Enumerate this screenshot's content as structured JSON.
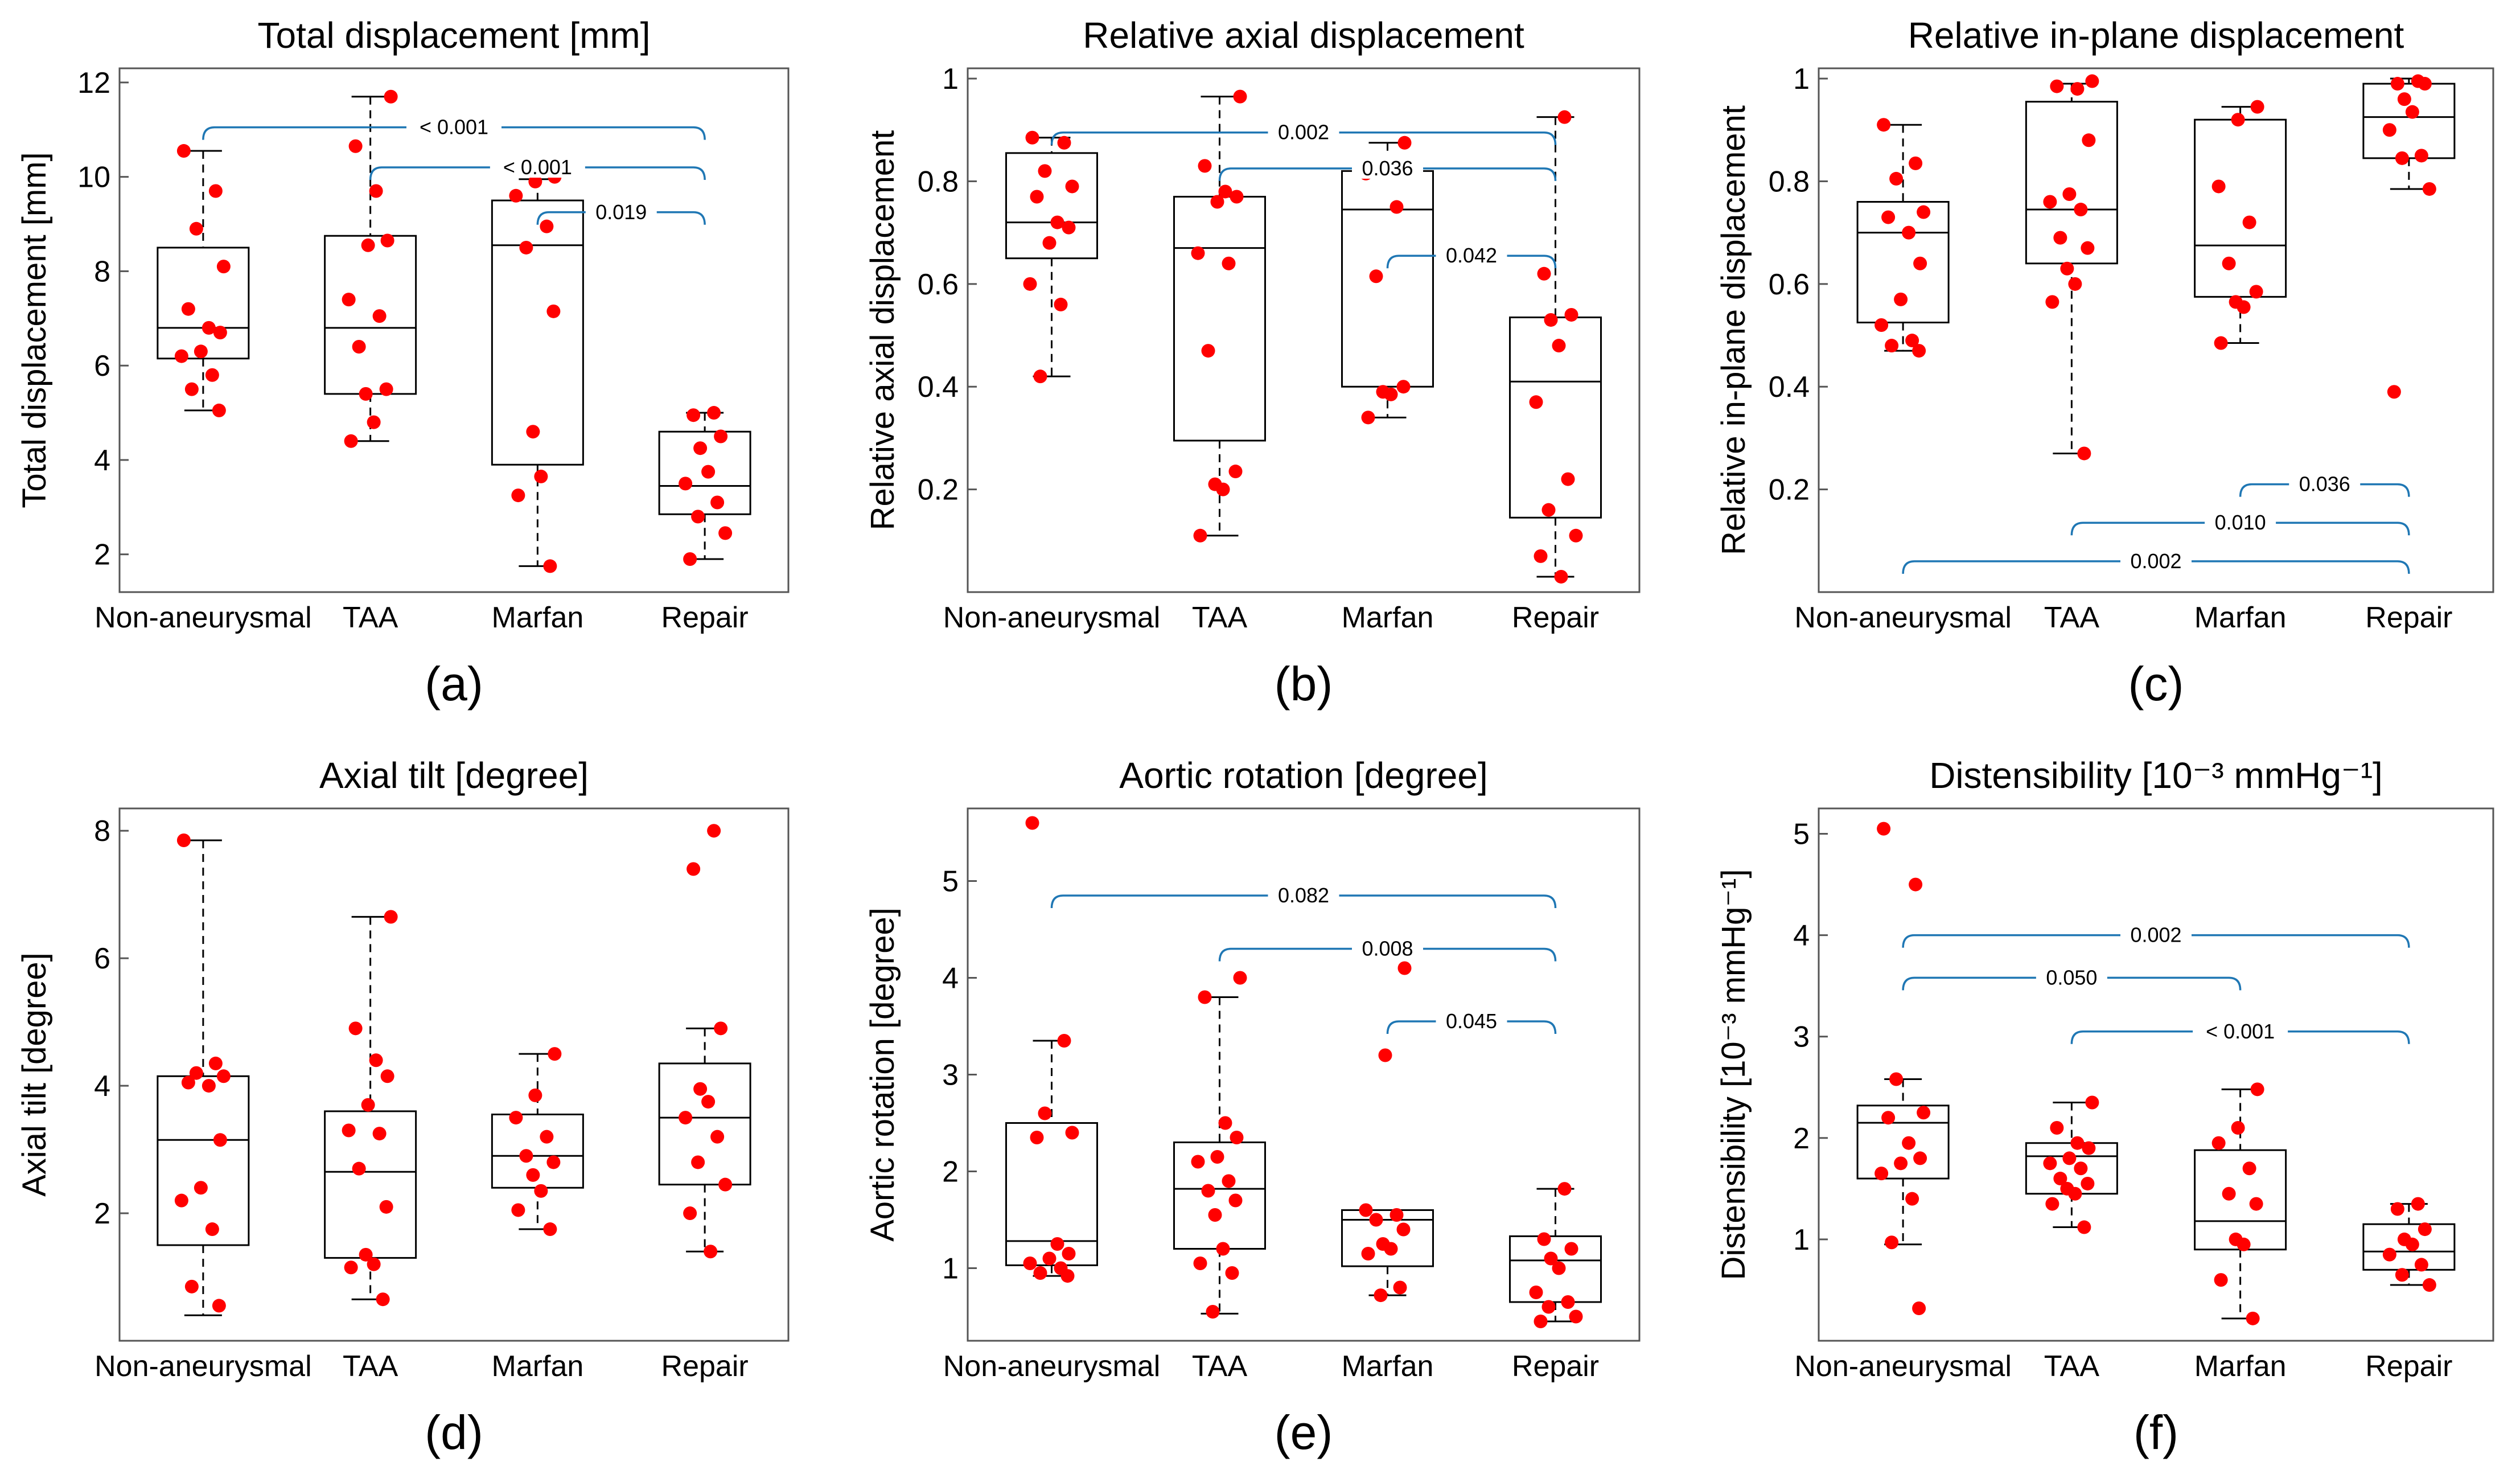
{
  "categories": [
    "Non-aneurysmal",
    "TAA",
    "Marfan",
    "Repair"
  ],
  "colors": {
    "point": "#ff0000",
    "bracket": "#1f77b4",
    "box": "#000000",
    "axes": "#555555"
  },
  "chart_data": [
    {
      "type": "box",
      "panel_label": "(a)",
      "title": "Total displacement [mm]",
      "ylabel": "Total displacement [mm]",
      "ylim": [
        1.2,
        12.3
      ],
      "yticks": [
        2,
        4,
        6,
        8,
        10,
        12
      ],
      "ytick_labels": [
        "2",
        "4",
        "6",
        "8",
        "10",
        "12"
      ],
      "boxes": [
        {
          "min": 5.05,
          "q1": 6.15,
          "median": 6.8,
          "q3": 8.5,
          "max": 10.55
        },
        {
          "min": 4.4,
          "q1": 5.4,
          "median": 6.8,
          "q3": 8.75,
          "max": 11.7
        },
        {
          "min": 1.75,
          "q1": 3.9,
          "median": 8.55,
          "q3": 9.5,
          "max": 9.95
        },
        {
          "min": 1.9,
          "q1": 2.85,
          "median": 3.45,
          "q3": 4.6,
          "max": 5.0
        }
      ],
      "points": [
        [
          10.55,
          9.7,
          8.9,
          8.1,
          7.2,
          6.8,
          6.7,
          6.3,
          6.2,
          5.8,
          5.5,
          5.05
        ],
        [
          11.7,
          10.65,
          9.7,
          8.65,
          8.55,
          7.4,
          7.05,
          6.4,
          5.5,
          5.4,
          4.8,
          4.4
        ],
        [
          10.0,
          9.9,
          9.6,
          8.95,
          8.5,
          7.15,
          4.6,
          3.65,
          3.25,
          1.75
        ],
        [
          5.0,
          4.95,
          4.5,
          4.25,
          3.75,
          3.5,
          3.1,
          2.8,
          2.45,
          1.9
        ]
      ],
      "brackets": [
        {
          "from": 0,
          "to": 3,
          "y": 11.05,
          "label": "< 0.001"
        },
        {
          "from": 1,
          "to": 3,
          "y": 10.2,
          "label": "< 0.001"
        },
        {
          "from": 2,
          "to": 3,
          "y": 9.25,
          "label": "0.019"
        }
      ]
    },
    {
      "type": "box",
      "panel_label": "(b)",
      "title": "Relative axial displacement",
      "ylabel": "Relative axial displacement",
      "ylim": [
        0.0,
        1.02
      ],
      "yticks": [
        0.2,
        0.4,
        0.6,
        0.8,
        1.0
      ],
      "ytick_labels": [
        "0.2",
        "0.4",
        "0.6",
        "0.8",
        "1"
      ],
      "boxes": [
        {
          "min": 0.42,
          "q1": 0.65,
          "median": 0.72,
          "q3": 0.855,
          "max": 0.885
        },
        {
          "min": 0.11,
          "q1": 0.295,
          "median": 0.67,
          "q3": 0.77,
          "max": 0.965
        },
        {
          "min": 0.34,
          "q1": 0.4,
          "median": 0.745,
          "q3": 0.82,
          "max": 0.875
        },
        {
          "min": 0.03,
          "q1": 0.145,
          "median": 0.41,
          "q3": 0.535,
          "max": 0.925
        }
      ],
      "points": [
        [
          0.885,
          0.875,
          0.82,
          0.79,
          0.77,
          0.72,
          0.71,
          0.68,
          0.6,
          0.56,
          0.42
        ],
        [
          0.965,
          0.83,
          0.78,
          0.77,
          0.76,
          0.66,
          0.64,
          0.47,
          0.235,
          0.21,
          0.2,
          0.11
        ],
        [
          0.875,
          0.835,
          0.815,
          0.75,
          0.615,
          0.4,
          0.39,
          0.385,
          0.34
        ],
        [
          0.925,
          0.62,
          0.54,
          0.53,
          0.48,
          0.37,
          0.22,
          0.16,
          0.11,
          0.07,
          0.03
        ]
      ],
      "brackets": [
        {
          "from": 0,
          "to": 3,
          "y": 0.895,
          "label": "0.002"
        },
        {
          "from": 1,
          "to": 3,
          "y": 0.825,
          "label": "0.036"
        },
        {
          "from": 2,
          "to": 3,
          "y": 0.655,
          "label": "0.042"
        }
      ]
    },
    {
      "type": "box",
      "panel_label": "(c)",
      "title": "Relative in-plane displacement",
      "ylabel": "Relative in-plane displacement",
      "ylim": [
        0.0,
        1.02
      ],
      "yticks": [
        0.2,
        0.4,
        0.6,
        0.8,
        1.0
      ],
      "ytick_labels": [
        "0.2",
        "0.4",
        "0.6",
        "0.8",
        "1"
      ],
      "boxes": [
        {
          "min": 0.47,
          "q1": 0.525,
          "median": 0.7,
          "q3": 0.76,
          "max": 0.91
        },
        {
          "min": 0.27,
          "q1": 0.64,
          "median": 0.745,
          "q3": 0.955,
          "max": 0.99
        },
        {
          "min": 0.485,
          "q1": 0.575,
          "median": 0.675,
          "q3": 0.92,
          "max": 0.945
        },
        {
          "min": 0.785,
          "q1": 0.845,
          "median": 0.925,
          "q3": 0.99,
          "max": 1.0
        }
      ],
      "points": [
        [
          0.91,
          0.835,
          0.805,
          0.74,
          0.73,
          0.7,
          0.64,
          0.57,
          0.52,
          0.49,
          0.48,
          0.47
        ],
        [
          0.995,
          0.985,
          0.98,
          0.88,
          0.775,
          0.76,
          0.745,
          0.69,
          0.67,
          0.63,
          0.6,
          0.565,
          0.27
        ],
        [
          0.945,
          0.92,
          0.79,
          0.72,
          0.64,
          0.585,
          0.565,
          0.555,
          0.485
        ],
        [
          0.995,
          0.99,
          0.99,
          0.96,
          0.935,
          0.9,
          0.85,
          0.845,
          0.785,
          0.39
        ]
      ],
      "brackets": [
        {
          "from": 2,
          "to": 3,
          "y": 0.21,
          "label": "0.036"
        },
        {
          "from": 1,
          "to": 3,
          "y": 0.135,
          "label": "0.010"
        },
        {
          "from": 0,
          "to": 3,
          "y": 0.06,
          "label": "0.002"
        }
      ]
    },
    {
      "type": "box",
      "panel_label": "(d)",
      "title": "Axial tilt [degree]",
      "ylabel": "Axial tilt [degree]",
      "ylim": [
        0.0,
        8.35
      ],
      "yticks": [
        2,
        4,
        6,
        8
      ],
      "ytick_labels": [
        "2",
        "4",
        "6",
        "8"
      ],
      "boxes": [
        {
          "min": 0.4,
          "q1": 1.5,
          "median": 3.15,
          "q3": 4.15,
          "max": 7.85
        },
        {
          "min": 0.65,
          "q1": 1.3,
          "median": 2.65,
          "q3": 3.6,
          "max": 6.65
        },
        {
          "min": 1.75,
          "q1": 2.4,
          "median": 2.9,
          "q3": 3.55,
          "max": 4.5
        },
        {
          "min": 1.4,
          "q1": 2.45,
          "median": 3.5,
          "q3": 4.35,
          "max": 4.9
        }
      ],
      "points": [
        [
          7.85,
          4.35,
          4.2,
          4.15,
          4.05,
          4.0,
          3.15,
          2.4,
          2.2,
          1.75,
          0.85,
          0.55
        ],
        [
          6.65,
          4.9,
          4.4,
          4.15,
          3.7,
          3.3,
          3.25,
          2.7,
          2.1,
          1.35,
          1.2,
          1.15,
          0.65
        ],
        [
          4.5,
          3.85,
          3.5,
          3.2,
          2.9,
          2.8,
          2.6,
          2.35,
          2.05,
          1.75
        ],
        [
          8.0,
          7.4,
          4.9,
          3.95,
          3.75,
          3.5,
          3.2,
          2.8,
          2.45,
          2.0,
          1.4
        ]
      ],
      "brackets": []
    },
    {
      "type": "box",
      "panel_label": "(e)",
      "title": "Aortic rotation [degree]",
      "ylabel": "Aortic rotation [degree]",
      "ylim": [
        0.25,
        5.75
      ],
      "yticks": [
        1,
        2,
        3,
        4,
        5
      ],
      "ytick_labels": [
        "1",
        "2",
        "3",
        "4",
        "5"
      ],
      "boxes": [
        {
          "min": 0.92,
          "q1": 1.03,
          "median": 1.28,
          "q3": 2.5,
          "max": 3.35
        },
        {
          "min": 0.53,
          "q1": 1.2,
          "median": 1.82,
          "q3": 2.3,
          "max": 3.8
        },
        {
          "min": 0.72,
          "q1": 1.02,
          "median": 1.5,
          "q3": 1.6,
          "max": 1.6
        },
        {
          "min": 0.45,
          "q1": 0.65,
          "median": 1.08,
          "q3": 1.33,
          "max": 1.82
        }
      ],
      "points": [
        [
          5.6,
          3.35,
          2.6,
          2.4,
          2.35,
          1.25,
          1.15,
          1.1,
          1.05,
          1.0,
          0.95,
          0.92
        ],
        [
          4.0,
          3.8,
          2.5,
          2.35,
          2.15,
          2.1,
          1.9,
          1.8,
          1.7,
          1.55,
          1.2,
          1.05,
          0.95,
          0.55
        ],
        [
          4.1,
          3.2,
          1.6,
          1.55,
          1.5,
          1.4,
          1.25,
          1.2,
          1.15,
          0.8,
          0.72
        ],
        [
          1.82,
          1.3,
          1.2,
          1.1,
          1.0,
          0.75,
          0.65,
          0.6,
          0.5,
          0.45
        ]
      ],
      "brackets": [
        {
          "from": 0,
          "to": 3,
          "y": 4.85,
          "label": "0.082"
        },
        {
          "from": 1,
          "to": 3,
          "y": 4.3,
          "label": "0.008"
        },
        {
          "from": 2,
          "to": 3,
          "y": 3.55,
          "label": "0.045"
        }
      ]
    },
    {
      "type": "box",
      "panel_label": "(f)",
      "title": "Distensibility [10⁻³ mmHg⁻¹]",
      "ylabel": "Distensibility [10⁻³ mmHg⁻¹]",
      "ylim": [
        0.0,
        5.25
      ],
      "yticks": [
        1,
        2,
        3,
        4,
        5
      ],
      "ytick_labels": [
        "1",
        "2",
        "3",
        "4",
        "5"
      ],
      "boxes": [
        {
          "min": 0.95,
          "q1": 1.6,
          "median": 2.15,
          "q3": 2.32,
          "max": 2.58
        },
        {
          "min": 1.12,
          "q1": 1.45,
          "median": 1.82,
          "q3": 1.95,
          "max": 2.35
        },
        {
          "min": 0.22,
          "q1": 0.9,
          "median": 1.18,
          "q3": 1.88,
          "max": 2.48
        },
        {
          "min": 0.55,
          "q1": 0.7,
          "median": 0.88,
          "q3": 1.15,
          "max": 1.35
        }
      ],
      "points": [
        [
          5.05,
          4.5,
          2.58,
          2.25,
          2.2,
          1.95,
          1.8,
          1.75,
          1.65,
          1.4,
          0.97,
          0.32
        ],
        [
          2.35,
          2.1,
          1.95,
          1.9,
          1.8,
          1.75,
          1.7,
          1.6,
          1.55,
          1.5,
          1.45,
          1.35,
          1.12
        ],
        [
          2.48,
          2.1,
          1.95,
          1.7,
          1.45,
          1.35,
          1.0,
          0.95,
          0.6,
          0.22
        ],
        [
          1.35,
          1.3,
          1.1,
          1.0,
          0.95,
          0.85,
          0.75,
          0.65,
          0.55
        ]
      ],
      "brackets": [
        {
          "from": 0,
          "to": 3,
          "y": 4.0,
          "label": "0.002"
        },
        {
          "from": 0,
          "to": 2,
          "y": 3.58,
          "label": "0.050"
        },
        {
          "from": 1,
          "to": 3,
          "y": 3.05,
          "label": "< 0.001"
        }
      ]
    }
  ]
}
